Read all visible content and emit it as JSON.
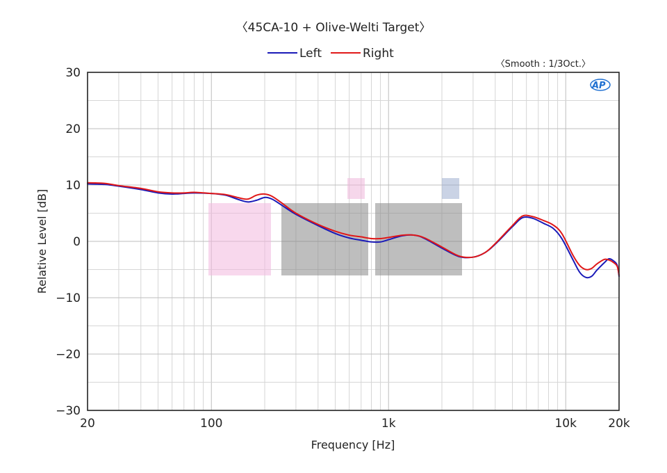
{
  "chart_data": {
    "type": "line",
    "title": "〈45CA-10 + Olive-Welti Target〉",
    "note": "〈Smooth : 1/3Oct.〉",
    "xlabel": "Frequency [Hz]",
    "ylabel": "Relative Level [dB]",
    "xscale": "log",
    "xlim": [
      20,
      20000
    ],
    "ylim": [
      -30,
      30
    ],
    "grid": true,
    "legend_position": "top-center",
    "x_ticks": [
      {
        "value": 20,
        "label": "20"
      },
      {
        "value": 100,
        "label": "100"
      },
      {
        "value": 1000,
        "label": "1k"
      },
      {
        "value": 10000,
        "label": "10k"
      },
      {
        "value": 20000,
        "label": "20k"
      }
    ],
    "y_ticks": [
      {
        "value": 30,
        "label": "30"
      },
      {
        "value": 20,
        "label": "20"
      },
      {
        "value": 10,
        "label": "10"
      },
      {
        "value": 0,
        "label": "0"
      },
      {
        "value": -10,
        "label": "−10"
      },
      {
        "value": -20,
        "label": "−20"
      },
      {
        "value": -30,
        "label": "−30"
      }
    ],
    "series": [
      {
        "name": "Left",
        "color": "#1a1ab8",
        "points": [
          [
            20,
            10.2
          ],
          [
            25,
            10.1
          ],
          [
            30,
            9.8
          ],
          [
            40,
            9.2
          ],
          [
            50,
            8.6
          ],
          [
            60,
            8.4
          ],
          [
            70,
            8.5
          ],
          [
            80,
            8.6
          ],
          [
            100,
            8.5
          ],
          [
            120,
            8.2
          ],
          [
            140,
            7.5
          ],
          [
            160,
            7.0
          ],
          [
            180,
            7.3
          ],
          [
            200,
            7.8
          ],
          [
            220,
            7.5
          ],
          [
            250,
            6.4
          ],
          [
            300,
            4.8
          ],
          [
            400,
            2.8
          ],
          [
            500,
            1.4
          ],
          [
            600,
            0.6
          ],
          [
            700,
            0.2
          ],
          [
            800,
            -0.1
          ],
          [
            900,
            -0.1
          ],
          [
            1000,
            0.3
          ],
          [
            1200,
            1.0
          ],
          [
            1400,
            1.1
          ],
          [
            1600,
            0.5
          ],
          [
            2000,
            -1.2
          ],
          [
            2500,
            -2.7
          ],
          [
            3000,
            -2.8
          ],
          [
            3500,
            -2.0
          ],
          [
            4000,
            -0.5
          ],
          [
            5000,
            2.6
          ],
          [
            5700,
            4.2
          ],
          [
            6500,
            4.1
          ],
          [
            7500,
            3.2
          ],
          [
            8500,
            2.3
          ],
          [
            9500,
            0.5
          ],
          [
            11000,
            -3.3
          ],
          [
            12000,
            -5.5
          ],
          [
            13000,
            -6.4
          ],
          [
            14000,
            -6.2
          ],
          [
            15000,
            -5.1
          ],
          [
            16500,
            -3.8
          ],
          [
            17500,
            -3.1
          ],
          [
            18500,
            -3.4
          ],
          [
            19500,
            -4.2
          ],
          [
            20000,
            -6.2
          ]
        ]
      },
      {
        "name": "Right",
        "color": "#e01818",
        "points": [
          [
            20,
            10.4
          ],
          [
            25,
            10.3
          ],
          [
            30,
            9.9
          ],
          [
            40,
            9.4
          ],
          [
            50,
            8.8
          ],
          [
            60,
            8.6
          ],
          [
            70,
            8.6
          ],
          [
            80,
            8.7
          ],
          [
            100,
            8.5
          ],
          [
            120,
            8.3
          ],
          [
            140,
            7.8
          ],
          [
            160,
            7.5
          ],
          [
            180,
            8.2
          ],
          [
            200,
            8.4
          ],
          [
            220,
            8.0
          ],
          [
            250,
            6.8
          ],
          [
            300,
            5.0
          ],
          [
            400,
            3.0
          ],
          [
            500,
            1.8
          ],
          [
            600,
            1.1
          ],
          [
            700,
            0.8
          ],
          [
            800,
            0.5
          ],
          [
            900,
            0.5
          ],
          [
            1000,
            0.7
          ],
          [
            1200,
            1.1
          ],
          [
            1400,
            1.1
          ],
          [
            1600,
            0.6
          ],
          [
            2000,
            -1.0
          ],
          [
            2500,
            -2.6
          ],
          [
            3000,
            -2.8
          ],
          [
            3500,
            -2.0
          ],
          [
            4000,
            -0.4
          ],
          [
            5000,
            2.8
          ],
          [
            5700,
            4.5
          ],
          [
            6500,
            4.4
          ],
          [
            7500,
            3.7
          ],
          [
            8500,
            2.9
          ],
          [
            9500,
            1.4
          ],
          [
            11000,
            -2.5
          ],
          [
            12000,
            -4.3
          ],
          [
            13000,
            -5.0
          ],
          [
            14000,
            -4.8
          ],
          [
            15000,
            -4.0
          ],
          [
            16500,
            -3.2
          ],
          [
            17500,
            -3.3
          ],
          [
            18500,
            -3.7
          ],
          [
            19500,
            -4.4
          ],
          [
            20000,
            -6.0
          ]
        ]
      }
    ]
  }
}
